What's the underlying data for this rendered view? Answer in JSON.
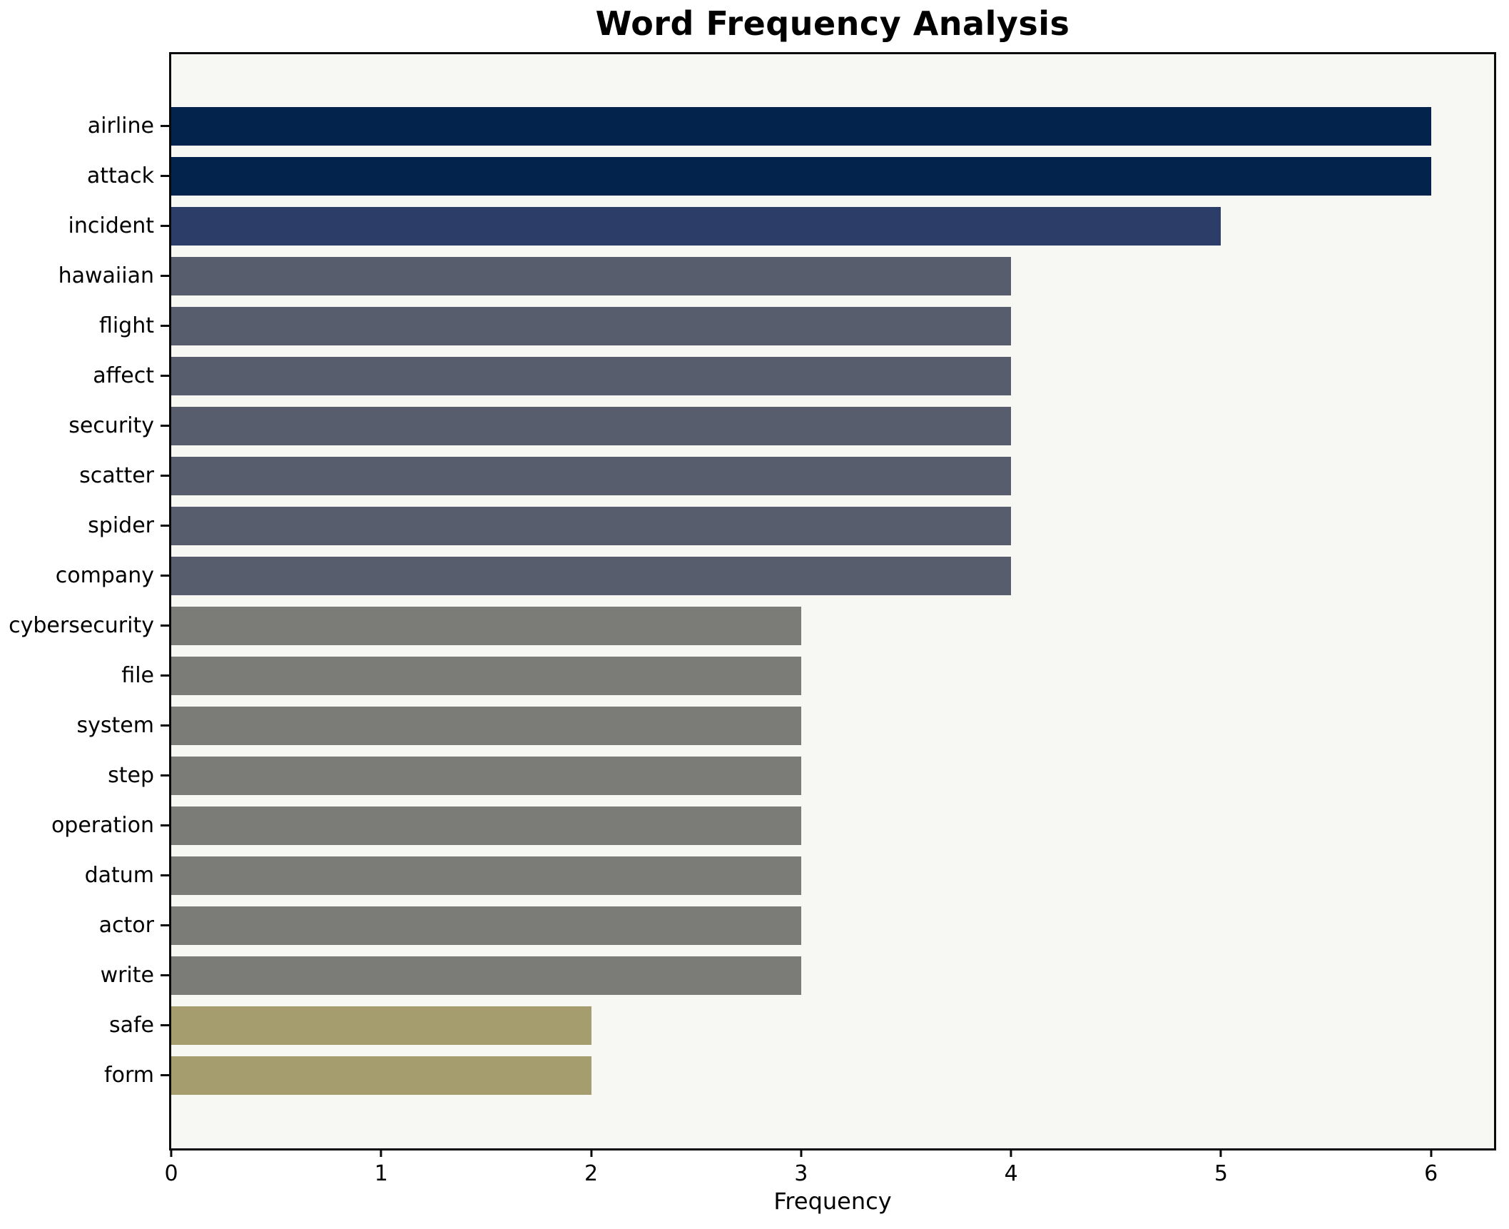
{
  "chart_data": {
    "type": "bar",
    "orientation": "horizontal",
    "title": "Word Frequency Analysis",
    "xlabel": "Frequency",
    "ylabel": "",
    "xlim": [
      0,
      6.3
    ],
    "xticks": [
      "0",
      "1",
      "2",
      "3",
      "4",
      "5",
      "6"
    ],
    "grid": false,
    "legend": false,
    "categories": [
      "airline",
      "attack",
      "incident",
      "hawaiian",
      "flight",
      "affect",
      "security",
      "scatter",
      "spider",
      "company",
      "cybersecurity",
      "file",
      "system",
      "step",
      "operation",
      "datum",
      "actor",
      "write",
      "safe",
      "form"
    ],
    "values": [
      6,
      6,
      5,
      4,
      4,
      4,
      4,
      4,
      4,
      4,
      3,
      3,
      3,
      3,
      3,
      3,
      3,
      3,
      2,
      2
    ],
    "bar_colors": [
      "#04234c",
      "#04234c",
      "#2c3e68",
      "#575d6d",
      "#575d6d",
      "#575d6d",
      "#575d6d",
      "#575d6d",
      "#575d6d",
      "#575d6d",
      "#7b7b78",
      "#7b7b78",
      "#7b7b78",
      "#7b7b78",
      "#7b7b78",
      "#7b7b78",
      "#7b7b78",
      "#7b7b78",
      "#a69d6e",
      "#a69d6e"
    ],
    "color_by_value": {
      "6": "#04234c",
      "5": "#2c3e68",
      "4": "#575d6d",
      "3": "#7b7b78",
      "2": "#a69d6e"
    },
    "plot_background": "#f7f7f4",
    "figure_background": "#ffffff",
    "spine_color": "#0a0a0a"
  }
}
